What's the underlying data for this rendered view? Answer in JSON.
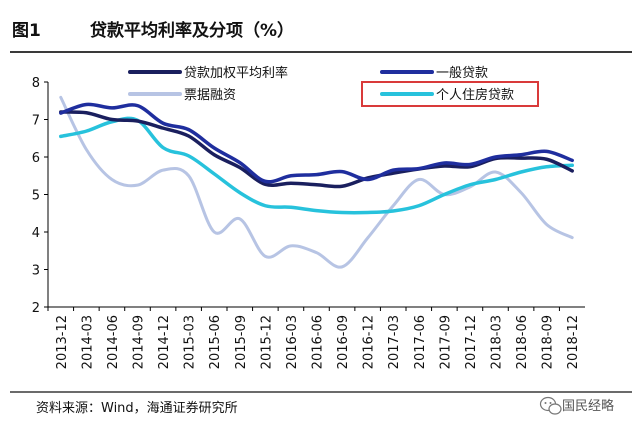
{
  "header": {
    "figure_no": "图1",
    "title": "贷款平均利率及分项（%）"
  },
  "footer": {
    "source": "资料来源：Wind，海通证券研究所",
    "watermark": "国民经略"
  },
  "colors": {
    "avg": "#1a1f5e",
    "general": "#1f2e9e",
    "bill": "#b7c4e4",
    "mortgage": "#27c2dc",
    "highlight_box": "#d93a3a",
    "axis": "#000000"
  },
  "chart_data": {
    "type": "line",
    "ylim": [
      2,
      8
    ],
    "yticks": [
      "2",
      "3",
      "4",
      "5",
      "6",
      "7",
      "8"
    ],
    "categories": [
      "2013-12",
      "2014-03",
      "2014-06",
      "2014-09",
      "2014-12",
      "2015-03",
      "2015-06",
      "2015-09",
      "2015-12",
      "2016-03",
      "2016-06",
      "2016-09",
      "2016-12",
      "2017-03",
      "2017-06",
      "2017-09",
      "2017-12",
      "2018-03",
      "2018-06",
      "2018-09",
      "2018-12"
    ],
    "legend": {
      "placement": "top",
      "highlighted": "个人住房贷款"
    },
    "series": [
      {
        "key": "avg",
        "name": "贷款加权平均利率",
        "values": [
          7.2,
          7.18,
          7.0,
          6.96,
          6.77,
          6.56,
          6.06,
          5.72,
          5.27,
          5.3,
          5.26,
          5.22,
          5.44,
          5.57,
          5.68,
          5.76,
          5.74,
          5.96,
          5.97,
          5.94,
          5.63
        ]
      },
      {
        "key": "general",
        "name": "一般贷款",
        "values": [
          7.17,
          7.4,
          7.31,
          7.37,
          6.9,
          6.73,
          6.24,
          5.85,
          5.35,
          5.5,
          5.53,
          5.61,
          5.4,
          5.65,
          5.69,
          5.84,
          5.8,
          6.0,
          6.06,
          6.15,
          5.91
        ]
      },
      {
        "key": "bill",
        "name": "票据融资",
        "values": [
          7.59,
          6.2,
          5.4,
          5.25,
          5.65,
          5.5,
          4.0,
          4.35,
          3.35,
          3.63,
          3.45,
          3.07,
          3.84,
          4.7,
          5.4,
          5.0,
          5.2,
          5.6,
          5.05,
          4.2,
          3.85
        ]
      },
      {
        "key": "mortgage",
        "name": "个人住房贷款",
        "values": [
          6.55,
          6.69,
          6.94,
          6.98,
          6.25,
          6.03,
          5.55,
          5.05,
          4.7,
          4.66,
          4.57,
          4.52,
          4.52,
          4.56,
          4.7,
          5.0,
          5.26,
          5.4,
          5.6,
          5.74,
          5.78
        ]
      }
    ]
  }
}
